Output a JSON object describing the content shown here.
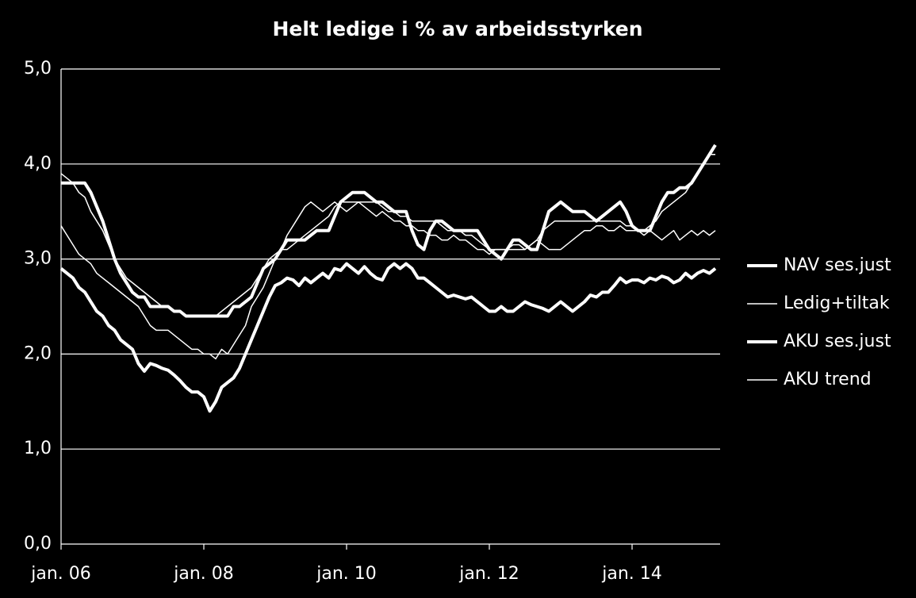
{
  "chart_data": {
    "type": "line",
    "title": "Helt ledige i % av arbeidsstyrken",
    "categories": [
      "jan. 06",
      null,
      null,
      null,
      null,
      null,
      null,
      null,
      null,
      null,
      null,
      null,
      null,
      null,
      null,
      null,
      null,
      null,
      null,
      null,
      null,
      null,
      null,
      null,
      "jan. 08",
      null,
      null,
      null,
      null,
      null,
      null,
      null,
      null,
      null,
      null,
      null,
      null,
      null,
      null,
      null,
      null,
      null,
      null,
      null,
      null,
      null,
      null,
      null,
      "jan. 10",
      null,
      null,
      null,
      null,
      null,
      null,
      null,
      null,
      null,
      null,
      null,
      null,
      null,
      null,
      null,
      null,
      null,
      null,
      null,
      null,
      null,
      null,
      null,
      "jan. 12",
      null,
      null,
      null,
      null,
      null,
      null,
      null,
      null,
      null,
      null,
      null,
      null,
      null,
      null,
      null,
      null,
      null,
      null,
      null,
      null,
      null,
      null,
      null,
      "jan. 14",
      null,
      null,
      null,
      null,
      null,
      null,
      null,
      null,
      null,
      null,
      null,
      null,
      null,
      null
    ],
    "series": [
      {
        "name": "NAV ses.just",
        "color": "#ffffff",
        "linewidth": 4,
        "values": [
          3.8,
          3.8,
          3.8,
          3.8,
          3.8,
          3.7,
          3.55,
          3.4,
          3.2,
          3.0,
          2.85,
          2.75,
          2.65,
          2.6,
          2.6,
          2.5,
          2.5,
          2.5,
          2.5,
          2.45,
          2.45,
          2.4,
          2.4,
          2.4,
          2.4,
          2.4,
          2.4,
          2.4,
          2.4,
          2.5,
          2.5,
          2.55,
          2.6,
          2.75,
          2.9,
          2.95,
          3.0,
          3.1,
          3.2,
          3.2,
          3.2,
          3.2,
          3.25,
          3.3,
          3.3,
          3.3,
          3.45,
          3.6,
          3.65,
          3.7,
          3.7,
          3.7,
          3.65,
          3.6,
          3.6,
          3.55,
          3.5,
          3.5,
          3.5,
          3.3,
          3.15,
          3.1,
          3.3,
          3.4,
          3.4,
          3.35,
          3.3,
          3.3,
          3.3,
          3.3,
          3.3,
          3.2,
          3.1,
          3.05,
          3.0,
          3.1,
          3.2,
          3.2,
          3.15,
          3.1,
          3.1,
          3.3,
          3.5,
          3.55,
          3.6,
          3.55,
          3.5,
          3.5,
          3.5,
          3.45,
          3.4,
          3.45,
          3.5,
          3.55,
          3.6,
          3.5,
          3.35,
          3.3,
          3.3,
          3.3,
          3.45,
          3.6,
          3.7,
          3.7,
          3.75,
          3.75,
          3.8,
          3.9,
          4.0,
          4.1,
          4.2
        ]
      },
      {
        "name": "Ledig+tiltak",
        "color": "#ffffff",
        "linewidth": 1.5,
        "values": [
          3.9,
          3.85,
          3.8,
          3.7,
          3.65,
          3.5,
          3.4,
          3.3,
          3.15,
          3.0,
          2.9,
          2.8,
          2.75,
          2.7,
          2.65,
          2.6,
          2.55,
          2.5,
          2.5,
          2.45,
          2.45,
          2.4,
          2.4,
          2.4,
          2.4,
          2.4,
          2.4,
          2.45,
          2.5,
          2.55,
          2.6,
          2.65,
          2.7,
          2.8,
          2.9,
          3.0,
          3.05,
          3.1,
          3.1,
          3.15,
          3.2,
          3.25,
          3.3,
          3.35,
          3.4,
          3.45,
          3.55,
          3.6,
          3.6,
          3.6,
          3.6,
          3.6,
          3.6,
          3.6,
          3.55,
          3.5,
          3.5,
          3.45,
          3.45,
          3.4,
          3.4,
          3.4,
          3.4,
          3.4,
          3.35,
          3.3,
          3.3,
          3.3,
          3.25,
          3.25,
          3.2,
          3.15,
          3.1,
          3.1,
          3.1,
          3.1,
          3.1,
          3.1,
          3.1,
          3.15,
          3.2,
          3.3,
          3.35,
          3.4,
          3.4,
          3.4,
          3.4,
          3.4,
          3.4,
          3.4,
          3.4,
          3.4,
          3.4,
          3.4,
          3.4,
          3.35,
          3.35,
          3.3,
          3.3,
          3.35,
          3.4,
          3.5,
          3.55,
          3.6,
          3.65,
          3.7,
          3.8,
          3.9,
          4.0,
          4.1,
          4.1
        ]
      },
      {
        "name": "AKU ses.just",
        "color": "#ffffff",
        "linewidth": 4,
        "values": [
          2.9,
          2.85,
          2.8,
          2.7,
          2.65,
          2.55,
          2.45,
          2.4,
          2.3,
          2.25,
          2.15,
          2.1,
          2.05,
          1.9,
          1.82,
          1.9,
          1.88,
          1.85,
          1.83,
          1.78,
          1.72,
          1.65,
          1.6,
          1.6,
          1.55,
          1.4,
          1.5,
          1.65,
          1.7,
          1.75,
          1.85,
          2.0,
          2.15,
          2.3,
          2.45,
          2.6,
          2.72,
          2.75,
          2.8,
          2.78,
          2.72,
          2.8,
          2.75,
          2.8,
          2.85,
          2.8,
          2.9,
          2.88,
          2.95,
          2.9,
          2.85,
          2.92,
          2.85,
          2.8,
          2.78,
          2.9,
          2.95,
          2.9,
          2.95,
          2.9,
          2.8,
          2.8,
          2.75,
          2.7,
          2.65,
          2.6,
          2.62,
          2.6,
          2.58,
          2.6,
          2.55,
          2.5,
          2.45,
          2.45,
          2.5,
          2.45,
          2.45,
          2.5,
          2.55,
          2.52,
          2.5,
          2.48,
          2.45,
          2.5,
          2.55,
          2.5,
          2.45,
          2.5,
          2.55,
          2.62,
          2.6,
          2.65,
          2.65,
          2.72,
          2.8,
          2.75,
          2.78,
          2.78,
          2.75,
          2.8,
          2.78,
          2.82,
          2.8,
          2.75,
          2.78,
          2.85,
          2.8,
          2.85,
          2.88,
          2.85,
          2.9
        ]
      },
      {
        "name": "AKU trend",
        "color": "#ffffff",
        "linewidth": 1.5,
        "values": [
          3.35,
          3.25,
          3.15,
          3.05,
          3.0,
          2.95,
          2.85,
          2.8,
          2.75,
          2.7,
          2.65,
          2.6,
          2.55,
          2.5,
          2.4,
          2.3,
          2.25,
          2.25,
          2.25,
          2.2,
          2.15,
          2.1,
          2.05,
          2.05,
          2.0,
          2.0,
          1.95,
          2.05,
          2.0,
          2.1,
          2.2,
          2.3,
          2.5,
          2.6,
          2.7,
          2.85,
          3.0,
          3.1,
          3.25,
          3.35,
          3.45,
          3.55,
          3.6,
          3.55,
          3.5,
          3.55,
          3.6,
          3.55,
          3.5,
          3.55,
          3.6,
          3.55,
          3.5,
          3.45,
          3.5,
          3.45,
          3.4,
          3.4,
          3.35,
          3.35,
          3.3,
          3.3,
          3.25,
          3.25,
          3.2,
          3.2,
          3.25,
          3.2,
          3.2,
          3.15,
          3.1,
          3.1,
          3.05,
          3.1,
          3.1,
          3.1,
          3.15,
          3.15,
          3.1,
          3.15,
          3.2,
          3.15,
          3.1,
          3.1,
          3.1,
          3.15,
          3.2,
          3.25,
          3.3,
          3.3,
          3.35,
          3.35,
          3.3,
          3.3,
          3.35,
          3.3,
          3.3,
          3.3,
          3.25,
          3.3,
          3.25,
          3.2,
          3.25,
          3.3,
          3.2,
          3.25,
          3.3,
          3.25,
          3.3,
          3.25,
          3.3
        ]
      }
    ],
    "ylim": [
      0,
      5
    ],
    "yticks": [
      {
        "value": 0,
        "label": "0,0"
      },
      {
        "value": 1,
        "label": "1,0"
      },
      {
        "value": 2,
        "label": "2,0"
      },
      {
        "value": 3,
        "label": "3,0"
      },
      {
        "value": 4,
        "label": "4,0"
      },
      {
        "value": 5,
        "label": "5,0"
      }
    ],
    "grid": true,
    "legend": "right",
    "background": "#000000"
  }
}
